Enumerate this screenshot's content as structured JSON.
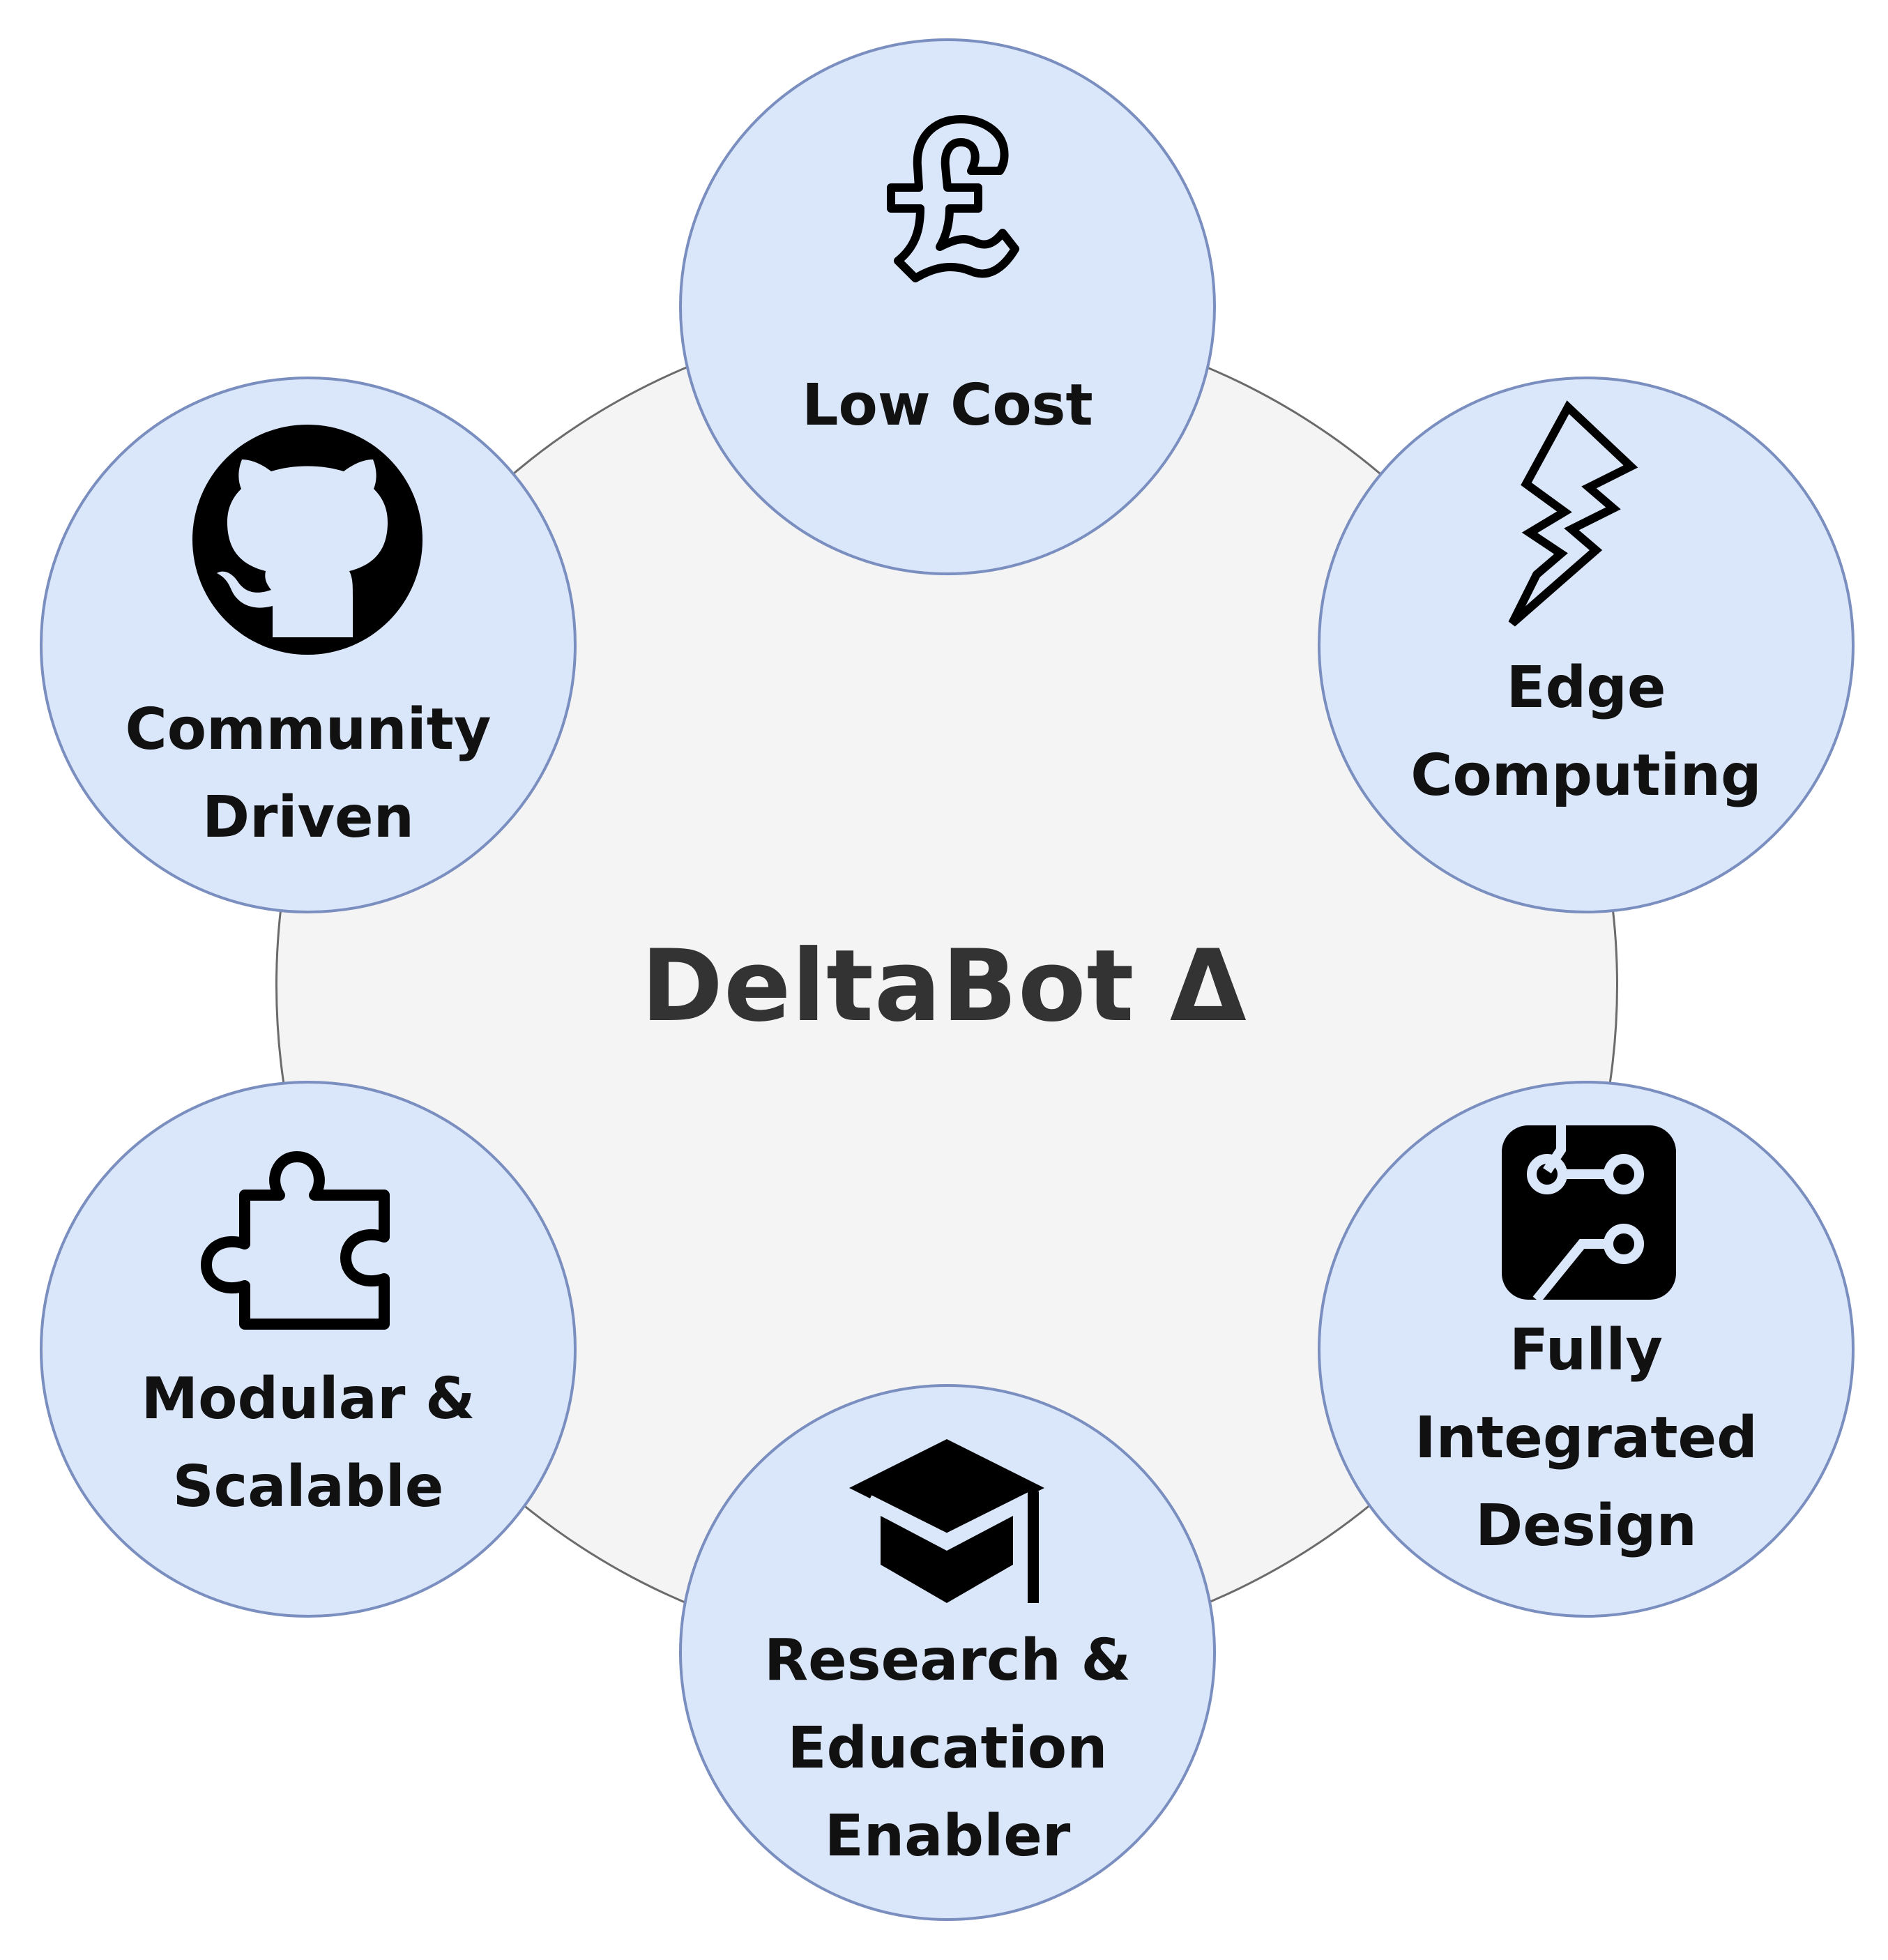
{
  "center": {
    "title": "DeltaBot Δ"
  },
  "nodes": {
    "low_cost": {
      "label": "Low Cost",
      "icon": "pound-sterling-icon"
    },
    "edge_computing": {
      "line1": "Edge",
      "line2": "Computing",
      "icon": "lightning-icon"
    },
    "integrated": {
      "line1": "Fully",
      "line2": "Integrated",
      "line3": "Design",
      "icon": "circuit-board-icon"
    },
    "research": {
      "line1": "Research &",
      "line2": "Education",
      "line3": "Enabler",
      "icon": "graduation-cap-icon"
    },
    "modular": {
      "line1": "Modular &",
      "line2": "Scalable",
      "icon": "puzzle-piece-icon"
    },
    "community": {
      "line1": "Community",
      "line2": "Driven",
      "icon": "github-icon"
    }
  },
  "colors": {
    "center_fill": "#f4f4f4",
    "center_border": "#6b6b6b",
    "node_fill": "#dae6fa",
    "node_border": "#7a8fbf",
    "title_text": "#333333",
    "label_text": "#111111"
  }
}
